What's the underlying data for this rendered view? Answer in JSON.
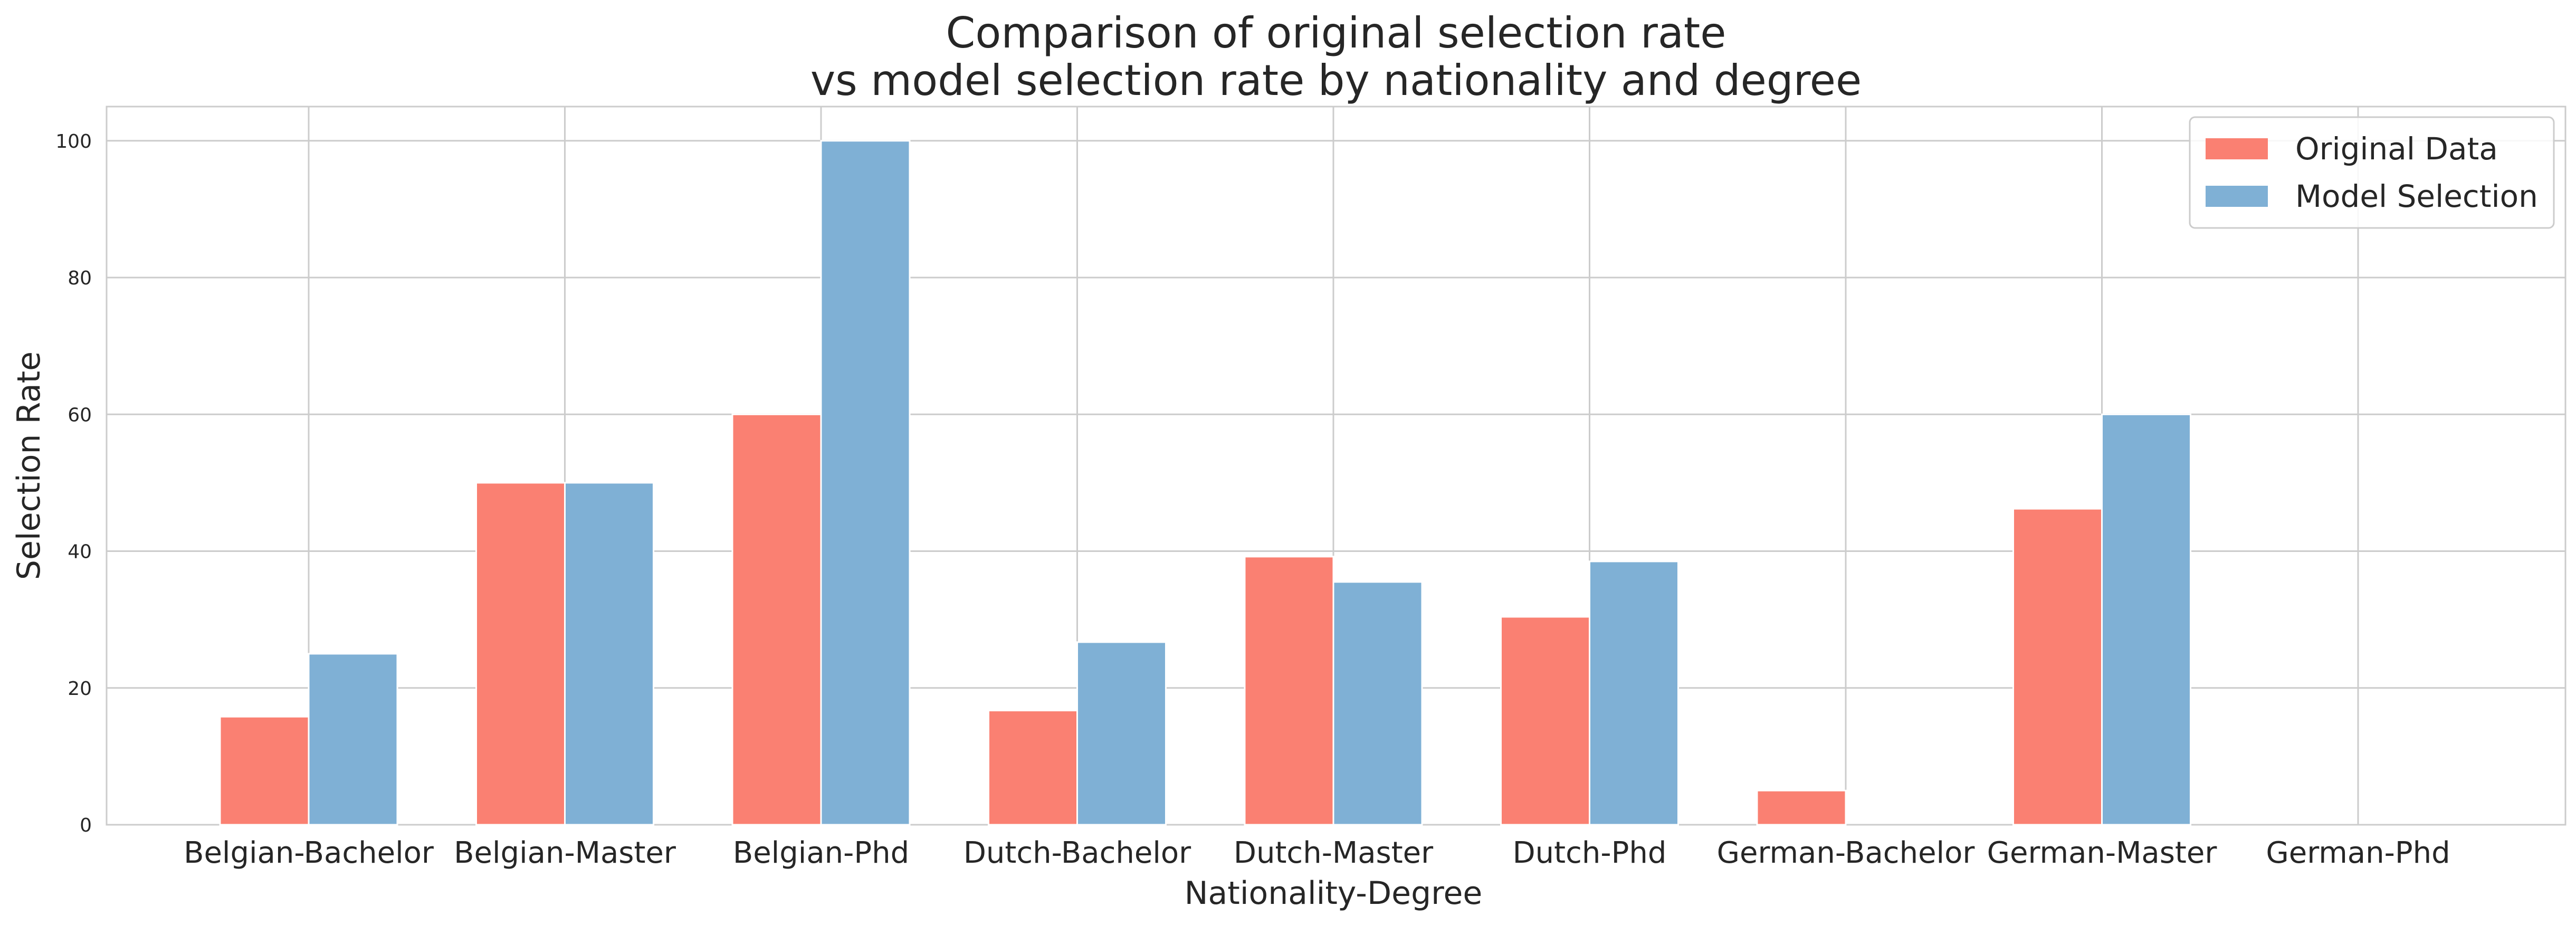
{
  "chart_data": {
    "type": "bar",
    "title_lines": [
      "Comparison of original selection rate",
      "vs model selection rate by nationality and degree"
    ],
    "xlabel": "Nationality-Degree",
    "ylabel": "Selection Rate",
    "categories": [
      "Belgian-Bachelor",
      "Belgian-Master",
      "Belgian-Phd",
      "Dutch-Bachelor",
      "Dutch-Master",
      "Dutch-Phd",
      "German-Bachelor",
      "German-Master",
      "German-Phd"
    ],
    "series": [
      {
        "name": "Original Data",
        "color": "#fa8072",
        "values": [
          15.8,
          50.0,
          60.0,
          16.7,
          39.2,
          30.4,
          5.0,
          46.2,
          0
        ]
      },
      {
        "name": "Model Selection",
        "color": "#7fb0d5",
        "values": [
          25.0,
          50.0,
          100.0,
          26.7,
          35.5,
          38.5,
          0,
          60.0,
          0
        ]
      }
    ],
    "ylim": [
      0,
      105
    ],
    "yticks": [
      0,
      20,
      40,
      60,
      80,
      100
    ],
    "grid": true,
    "legend_position": "top-right"
  }
}
